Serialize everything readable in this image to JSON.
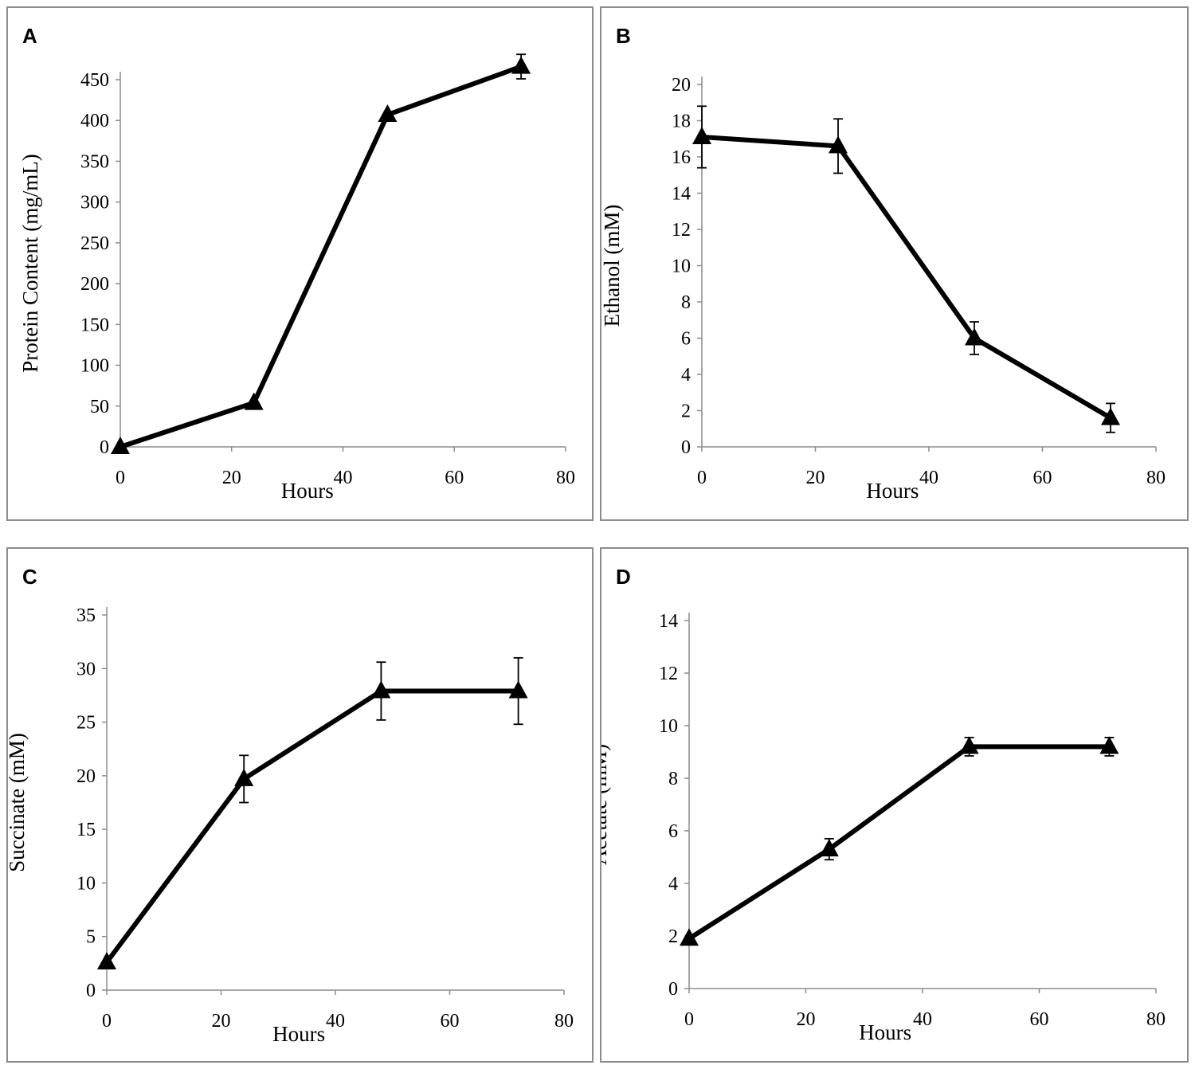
{
  "colors": {
    "line": "#000000",
    "axis": "#8c8c8c",
    "border": "#8c8c8c"
  },
  "chart_data": [
    {
      "panel": "A",
      "type": "line",
      "xlabel": "Hours",
      "ylabel": "Protein Content (mg/mL)",
      "xlim": [
        0,
        80
      ],
      "ylim": [
        0,
        450
      ],
      "xticks": [
        0,
        20,
        40,
        60,
        80
      ],
      "yticks": [
        0,
        50,
        100,
        150,
        200,
        250,
        300,
        350,
        400,
        450
      ],
      "x": [
        0,
        24,
        48,
        72
      ],
      "y": [
        0,
        54,
        407,
        466
      ],
      "err": [
        0,
        0,
        0,
        15
      ],
      "marker": "triangle"
    },
    {
      "panel": "B",
      "type": "line",
      "xlabel": "Hours",
      "ylabel": "Ethanol (mM)",
      "xlim": [
        0,
        80
      ],
      "ylim": [
        0,
        20
      ],
      "xticks": [
        0,
        20,
        40,
        60,
        80
      ],
      "yticks": [
        0,
        2,
        4,
        6,
        8,
        10,
        12,
        14,
        16,
        18,
        20
      ],
      "x": [
        0,
        24,
        48,
        72
      ],
      "y": [
        17.1,
        16.6,
        6.0,
        1.6
      ],
      "err": [
        1.7,
        1.5,
        0.9,
        0.8
      ],
      "marker": "triangle"
    },
    {
      "panel": "C",
      "type": "line",
      "xlabel": "Hours",
      "ylabel": "Succinate (mM)",
      "xlim": [
        0,
        80
      ],
      "ylim": [
        0,
        35
      ],
      "xticks": [
        0,
        20,
        40,
        60,
        80
      ],
      "yticks": [
        0,
        5,
        10,
        15,
        20,
        25,
        30,
        35
      ],
      "x": [
        0,
        24,
        48,
        72
      ],
      "y": [
        2.6,
        19.7,
        27.9,
        27.9
      ],
      "err": [
        0,
        2.2,
        2.7,
        3.1
      ],
      "marker": "triangle"
    },
    {
      "panel": "D",
      "type": "line",
      "xlabel": "Hours",
      "ylabel": "Acetate (mM)",
      "xlim": [
        0,
        80
      ],
      "ylim": [
        0,
        14
      ],
      "xticks": [
        0,
        20,
        40,
        60,
        80
      ],
      "yticks": [
        0,
        2,
        4,
        6,
        8,
        10,
        12,
        14
      ],
      "x": [
        0,
        24,
        48,
        72
      ],
      "y": [
        1.9,
        5.3,
        9.2,
        9.2
      ],
      "err": [
        0,
        0.4,
        0.35,
        0.35
      ],
      "marker": "triangle"
    }
  ]
}
